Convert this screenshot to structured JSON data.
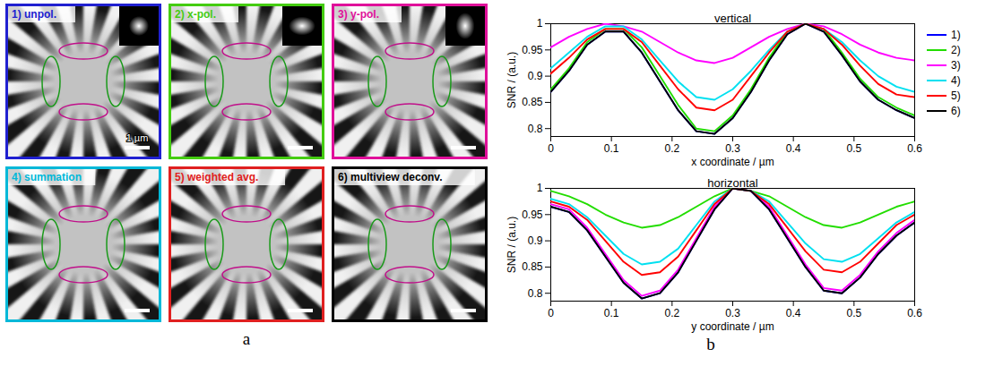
{
  "panel_labels": [
    "a",
    "b"
  ],
  "images": [
    {
      "title": "1) unpol.",
      "color": "#2020d0",
      "scale_bar": "1 µm"
    },
    {
      "title": "2) x-pol.",
      "color": "#44cc11"
    },
    {
      "title": "3) y-pol.",
      "color": "#e0109a"
    },
    {
      "title": "4) summation",
      "color": "#00b8d8"
    },
    {
      "title": "5) weighted avg.",
      "color": "#e02020"
    },
    {
      "title": "6) multiview deconv.",
      "color": "#000000"
    }
  ],
  "chart_data": [
    {
      "type": "line",
      "title": "vertical",
      "x_label": "x coordinate / µm",
      "y_label": "SNR / (a.u.)",
      "x": [
        0,
        0.03,
        0.06,
        0.09,
        0.12,
        0.15,
        0.18,
        0.21,
        0.24,
        0.27,
        0.3,
        0.33,
        0.36,
        0.39,
        0.42,
        0.45,
        0.48,
        0.51,
        0.54,
        0.57,
        0.6
      ],
      "xlim": [
        0,
        0.6
      ],
      "xticks": [
        0,
        0.1,
        0.2,
        0.3,
        0.4,
        0.5,
        0.6
      ],
      "ylim": [
        0.785,
        1
      ],
      "yticks": [
        0.8,
        0.85,
        0.9,
        0.95,
        1
      ],
      "grid": false,
      "legend": "right",
      "series": [
        {
          "name": "1)",
          "color": "#0000ff",
          "values": [
            0.87,
            0.91,
            0.96,
            0.985,
            0.985,
            0.945,
            0.89,
            0.835,
            0.795,
            0.79,
            0.82,
            0.87,
            0.93,
            0.98,
            1.0,
            0.985,
            0.94,
            0.89,
            0.855,
            0.835,
            0.82
          ]
        },
        {
          "name": "2)",
          "color": "#22dd00",
          "values": [
            0.875,
            0.915,
            0.965,
            0.99,
            0.99,
            0.955,
            0.9,
            0.845,
            0.8,
            0.795,
            0.825,
            0.875,
            0.935,
            0.985,
            1.0,
            0.99,
            0.945,
            0.895,
            0.86,
            0.84,
            0.825
          ]
        },
        {
          "name": "3)",
          "color": "#ff00ff",
          "values": [
            0.955,
            0.975,
            0.99,
            1.0,
            0.995,
            0.985,
            0.965,
            0.945,
            0.93,
            0.925,
            0.935,
            0.955,
            0.975,
            0.99,
            1.0,
            0.995,
            0.98,
            0.96,
            0.945,
            0.935,
            0.93
          ]
        },
        {
          "name": "4)",
          "color": "#00e0f0",
          "values": [
            0.915,
            0.945,
            0.975,
            0.995,
            0.995,
            0.97,
            0.93,
            0.89,
            0.86,
            0.855,
            0.875,
            0.91,
            0.95,
            0.985,
            1.0,
            0.99,
            0.965,
            0.93,
            0.9,
            0.88,
            0.87
          ]
        },
        {
          "name": "5)",
          "color": "#ff0000",
          "values": [
            0.905,
            0.935,
            0.97,
            0.99,
            0.99,
            0.965,
            0.92,
            0.875,
            0.84,
            0.835,
            0.855,
            0.9,
            0.945,
            0.985,
            1.0,
            0.99,
            0.96,
            0.92,
            0.885,
            0.865,
            0.86
          ]
        },
        {
          "name": "6)",
          "color": "#000000",
          "values": [
            0.87,
            0.91,
            0.96,
            0.985,
            0.985,
            0.945,
            0.89,
            0.835,
            0.795,
            0.79,
            0.82,
            0.87,
            0.93,
            0.98,
            1.0,
            0.985,
            0.94,
            0.89,
            0.855,
            0.835,
            0.82
          ]
        }
      ]
    },
    {
      "type": "line",
      "title": "horizontal",
      "x_label": "y coordinate / µm",
      "y_label": "SNR / (a.u.)",
      "x": [
        0,
        0.03,
        0.06,
        0.09,
        0.12,
        0.15,
        0.18,
        0.21,
        0.24,
        0.27,
        0.3,
        0.33,
        0.36,
        0.39,
        0.42,
        0.45,
        0.48,
        0.51,
        0.54,
        0.57,
        0.6
      ],
      "xlim": [
        0,
        0.6
      ],
      "xticks": [
        0,
        0.1,
        0.2,
        0.3,
        0.4,
        0.5,
        0.6
      ],
      "ylim": [
        0.785,
        1
      ],
      "yticks": [
        0.8,
        0.85,
        0.9,
        0.95,
        1
      ],
      "grid": false,
      "series": [
        {
          "color": "#0000ff",
          "values": [
            0.965,
            0.955,
            0.92,
            0.87,
            0.82,
            0.79,
            0.8,
            0.84,
            0.9,
            0.96,
            1.0,
            0.995,
            0.96,
            0.905,
            0.85,
            0.805,
            0.8,
            0.83,
            0.875,
            0.91,
            0.935
          ]
        },
        {
          "color": "#22dd00",
          "values": [
            0.995,
            0.985,
            0.97,
            0.95,
            0.935,
            0.925,
            0.93,
            0.945,
            0.965,
            0.985,
            1.0,
            0.995,
            0.985,
            0.965,
            0.945,
            0.93,
            0.925,
            0.935,
            0.95,
            0.965,
            0.975
          ]
        },
        {
          "color": "#ff00ff",
          "values": [
            0.97,
            0.96,
            0.925,
            0.875,
            0.825,
            0.795,
            0.805,
            0.845,
            0.905,
            0.965,
            1.0,
            0.995,
            0.965,
            0.91,
            0.855,
            0.81,
            0.805,
            0.835,
            0.88,
            0.915,
            0.94
          ]
        },
        {
          "color": "#00e0f0",
          "values": [
            0.98,
            0.97,
            0.945,
            0.91,
            0.875,
            0.855,
            0.86,
            0.885,
            0.93,
            0.975,
            1.0,
            0.995,
            0.975,
            0.935,
            0.895,
            0.865,
            0.86,
            0.875,
            0.905,
            0.935,
            0.955
          ]
        },
        {
          "color": "#ff0000",
          "values": [
            0.975,
            0.965,
            0.94,
            0.9,
            0.86,
            0.835,
            0.84,
            0.87,
            0.92,
            0.97,
            1.0,
            0.995,
            0.97,
            0.925,
            0.88,
            0.845,
            0.84,
            0.86,
            0.895,
            0.93,
            0.95
          ]
        },
        {
          "color": "#000000",
          "values": [
            0.965,
            0.955,
            0.92,
            0.87,
            0.82,
            0.79,
            0.8,
            0.84,
            0.9,
            0.96,
            1.0,
            0.995,
            0.96,
            0.905,
            0.85,
            0.805,
            0.8,
            0.83,
            0.875,
            0.91,
            0.935
          ]
        }
      ]
    }
  ]
}
